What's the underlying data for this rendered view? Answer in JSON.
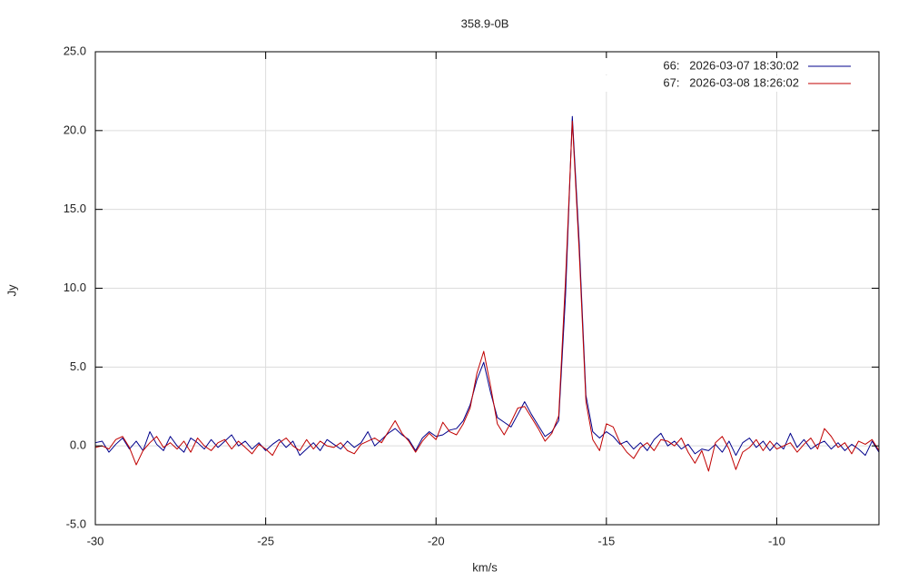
{
  "chart_data": {
    "type": "line",
    "title": "358.9-0B",
    "x_label": "km/s",
    "y_label": "Jy",
    "xlim": [
      -30,
      -7
    ],
    "ylim": [
      -5,
      25
    ],
    "xticks": [
      -30,
      -25,
      -20,
      -15,
      -10
    ],
    "yticks": [
      {
        "value": -5,
        "label": "-5.0"
      },
      {
        "value": 0,
        "label": "0.0"
      },
      {
        "value": 5,
        "label": "5.0"
      },
      {
        "value": 10,
        "label": "10.0"
      },
      {
        "value": 15,
        "label": "15.0"
      },
      {
        "value": 20,
        "label": "20.0"
      },
      {
        "value": 25,
        "label": "25.0"
      }
    ],
    "grid": true,
    "legend": "top-right",
    "x": [
      -30,
      -29.8,
      -29.6,
      -29.4,
      -29.2,
      -29,
      -28.8,
      -28.6,
      -28.4,
      -28.2,
      -28,
      -27.8,
      -27.6,
      -27.4,
      -27.2,
      -27,
      -26.8,
      -26.6,
      -26.4,
      -26.2,
      -26,
      -25.8,
      -25.6,
      -25.4,
      -25.2,
      -25,
      -24.8,
      -24.6,
      -24.4,
      -24.2,
      -24,
      -23.8,
      -23.6,
      -23.4,
      -23.2,
      -23,
      -22.8,
      -22.6,
      -22.4,
      -22.2,
      -22,
      -21.8,
      -21.6,
      -21.4,
      -21.2,
      -21,
      -20.8,
      -20.6,
      -20.4,
      -20.2,
      -20,
      -19.8,
      -19.6,
      -19.4,
      -19.2,
      -19,
      -18.8,
      -18.6,
      -18.4,
      -18.2,
      -18,
      -17.8,
      -17.6,
      -17.4,
      -17.2,
      -17,
      -16.8,
      -16.6,
      -16.4,
      -16.2,
      -16,
      -15.8,
      -15.6,
      -15.4,
      -15.2,
      -15,
      -14.8,
      -14.6,
      -14.4,
      -14.2,
      -14,
      -13.8,
      -13.6,
      -13.4,
      -13.2,
      -13,
      -12.8,
      -12.6,
      -12.4,
      -12.2,
      -12,
      -11.8,
      -11.6,
      -11.4,
      -11.2,
      -11,
      -10.8,
      -10.6,
      -10.4,
      -10.2,
      -10,
      -9.8,
      -9.6,
      -9.4,
      -9.2,
      -9,
      -8.8,
      -8.6,
      -8.4,
      -8.2,
      -8,
      -7.8,
      -7.6,
      -7.4,
      -7.2,
      -7
    ],
    "series": [
      {
        "name": "66:   2026-03-07 18:30:02",
        "color": "#00008b",
        "values": [
          0.2,
          0.3,
          -0.4,
          0.1,
          0.5,
          -0.2,
          0.3,
          -0.3,
          0.9,
          0.1,
          -0.3,
          0.6,
          0.0,
          -0.4,
          0.5,
          0.2,
          -0.2,
          0.4,
          -0.1,
          0.3,
          0.7,
          0.0,
          0.3,
          -0.2,
          0.2,
          -0.3,
          0.1,
          0.4,
          -0.1,
          0.3,
          -0.6,
          -0.2,
          0.2,
          -0.3,
          0.4,
          0.1,
          -0.2,
          0.3,
          -0.1,
          0.2,
          0.9,
          0.0,
          0.4,
          0.8,
          1.1,
          0.7,
          0.4,
          -0.3,
          0.5,
          0.9,
          0.6,
          0.7,
          1.0,
          1.1,
          1.6,
          2.6,
          4.2,
          5.3,
          3.4,
          1.8,
          1.5,
          1.2,
          2.0,
          2.8,
          2.0,
          1.3,
          0.6,
          0.9,
          1.6,
          9.5,
          20.9,
          13.0,
          3.2,
          0.9,
          0.5,
          0.9,
          0.6,
          0.1,
          0.3,
          -0.2,
          0.2,
          -0.3,
          0.4,
          0.8,
          0.0,
          0.3,
          -0.2,
          0.1,
          -0.5,
          -0.2,
          -0.3,
          0.1,
          -0.4,
          0.3,
          -0.6,
          0.2,
          0.5,
          -0.1,
          0.3,
          -0.3,
          0.2,
          -0.2,
          0.8,
          -0.1,
          0.4,
          -0.2,
          0.1,
          0.3,
          -0.2,
          0.2,
          -0.3,
          0.1,
          -0.2,
          -0.6,
          0.3,
          -0.4
        ]
      },
      {
        "name": "67:   2026-03-08 18:26:02",
        "color": "#c00000",
        "values": [
          -0.1,
          0.0,
          -0.2,
          0.4,
          0.6,
          -0.1,
          -1.2,
          -0.3,
          0.2,
          0.6,
          -0.1,
          0.2,
          -0.2,
          0.3,
          -0.4,
          0.5,
          0.0,
          -0.3,
          0.2,
          0.4,
          -0.2,
          0.3,
          -0.1,
          -0.5,
          0.1,
          -0.2,
          -0.6,
          0.2,
          0.5,
          0.0,
          -0.3,
          0.4,
          -0.2,
          0.3,
          0.0,
          -0.1,
          0.2,
          -0.3,
          -0.5,
          0.1,
          0.3,
          0.5,
          0.2,
          0.9,
          1.6,
          0.8,
          0.3,
          -0.4,
          0.3,
          0.8,
          0.4,
          1.5,
          0.9,
          0.7,
          1.4,
          2.4,
          4.6,
          6.0,
          3.8,
          1.4,
          0.7,
          1.5,
          2.4,
          2.5,
          1.8,
          1.1,
          0.3,
          0.8,
          1.9,
          10.5,
          20.6,
          12.4,
          2.8,
          0.4,
          -0.3,
          1.4,
          1.2,
          0.2,
          -0.4,
          -0.8,
          -0.1,
          0.2,
          -0.3,
          0.4,
          0.3,
          0.0,
          0.5,
          -0.4,
          -1.1,
          -0.3,
          -1.6,
          0.2,
          0.6,
          -0.2,
          -1.5,
          -0.4,
          -0.1,
          0.4,
          -0.3,
          0.3,
          -0.2,
          0.0,
          0.2,
          -0.4,
          0.1,
          0.5,
          -0.2,
          1.1,
          0.6,
          -0.1,
          0.2,
          -0.5,
          0.3,
          0.1,
          0.4,
          -0.3
        ]
      }
    ]
  }
}
